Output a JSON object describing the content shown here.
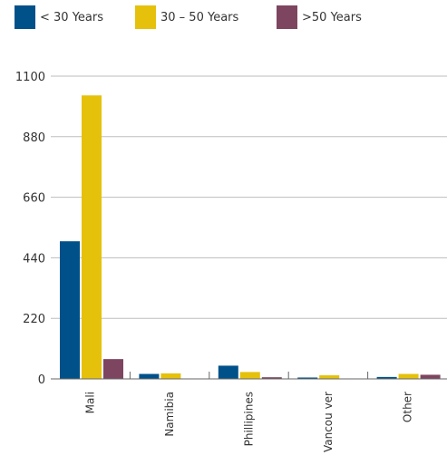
{
  "chart_data": {
    "type": "bar",
    "categories": [
      "Mali",
      "Namibia",
      "Phillipines",
      "Vancou ver",
      "Other"
    ],
    "series": [
      {
        "name": "< 30 Years",
        "color": "#005189",
        "values": [
          500,
          18,
          48,
          5,
          7
        ]
      },
      {
        "name": "30 – 50 Years",
        "color": "#e5c10b",
        "values": [
          1030,
          20,
          25,
          13,
          18
        ]
      },
      {
        "name": ">50 Years",
        "color": "#7e4560",
        "values": [
          72,
          0,
          6,
          0,
          15
        ]
      }
    ],
    "yticks": [
      "0",
      "220",
      "440",
      "660",
      "880",
      "1100"
    ],
    "ylim": [
      0,
      1100
    ],
    "grid": true,
    "legend_position": "top",
    "title": "",
    "xlabel": "",
    "ylabel": ""
  }
}
